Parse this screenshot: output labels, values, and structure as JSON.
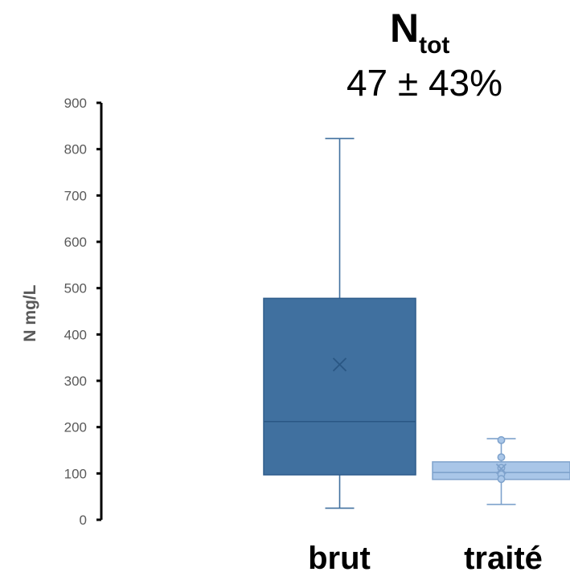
{
  "chart_data": {
    "type": "box",
    "title": {
      "main": "N",
      "subscript": "tot",
      "line2": "47 ± 43%"
    },
    "ylabel": "N mg/L",
    "ylim": [
      0,
      900
    ],
    "yticks": [
      "0",
      "100",
      "200",
      "300",
      "400",
      "500",
      "600",
      "700",
      "800",
      "900"
    ],
    "grid": false,
    "legend": "none",
    "categories": [
      "brut",
      "traité"
    ],
    "series": [
      {
        "category": "brut",
        "color": "#40709f",
        "whisker_low": 25,
        "q1": 97,
        "median": 212,
        "q3": 478,
        "whisker_high": 823,
        "mean": 335,
        "points": []
      },
      {
        "category": "traité",
        "color": "#a9c6e8",
        "edge_color": "#7ea2cc",
        "whisker_low": 33,
        "q1": 87,
        "median": 102,
        "q3": 125,
        "whisker_high": 175,
        "mean": 110,
        "points": [
          172,
          135,
          112,
          98,
          88
        ]
      }
    ]
  }
}
